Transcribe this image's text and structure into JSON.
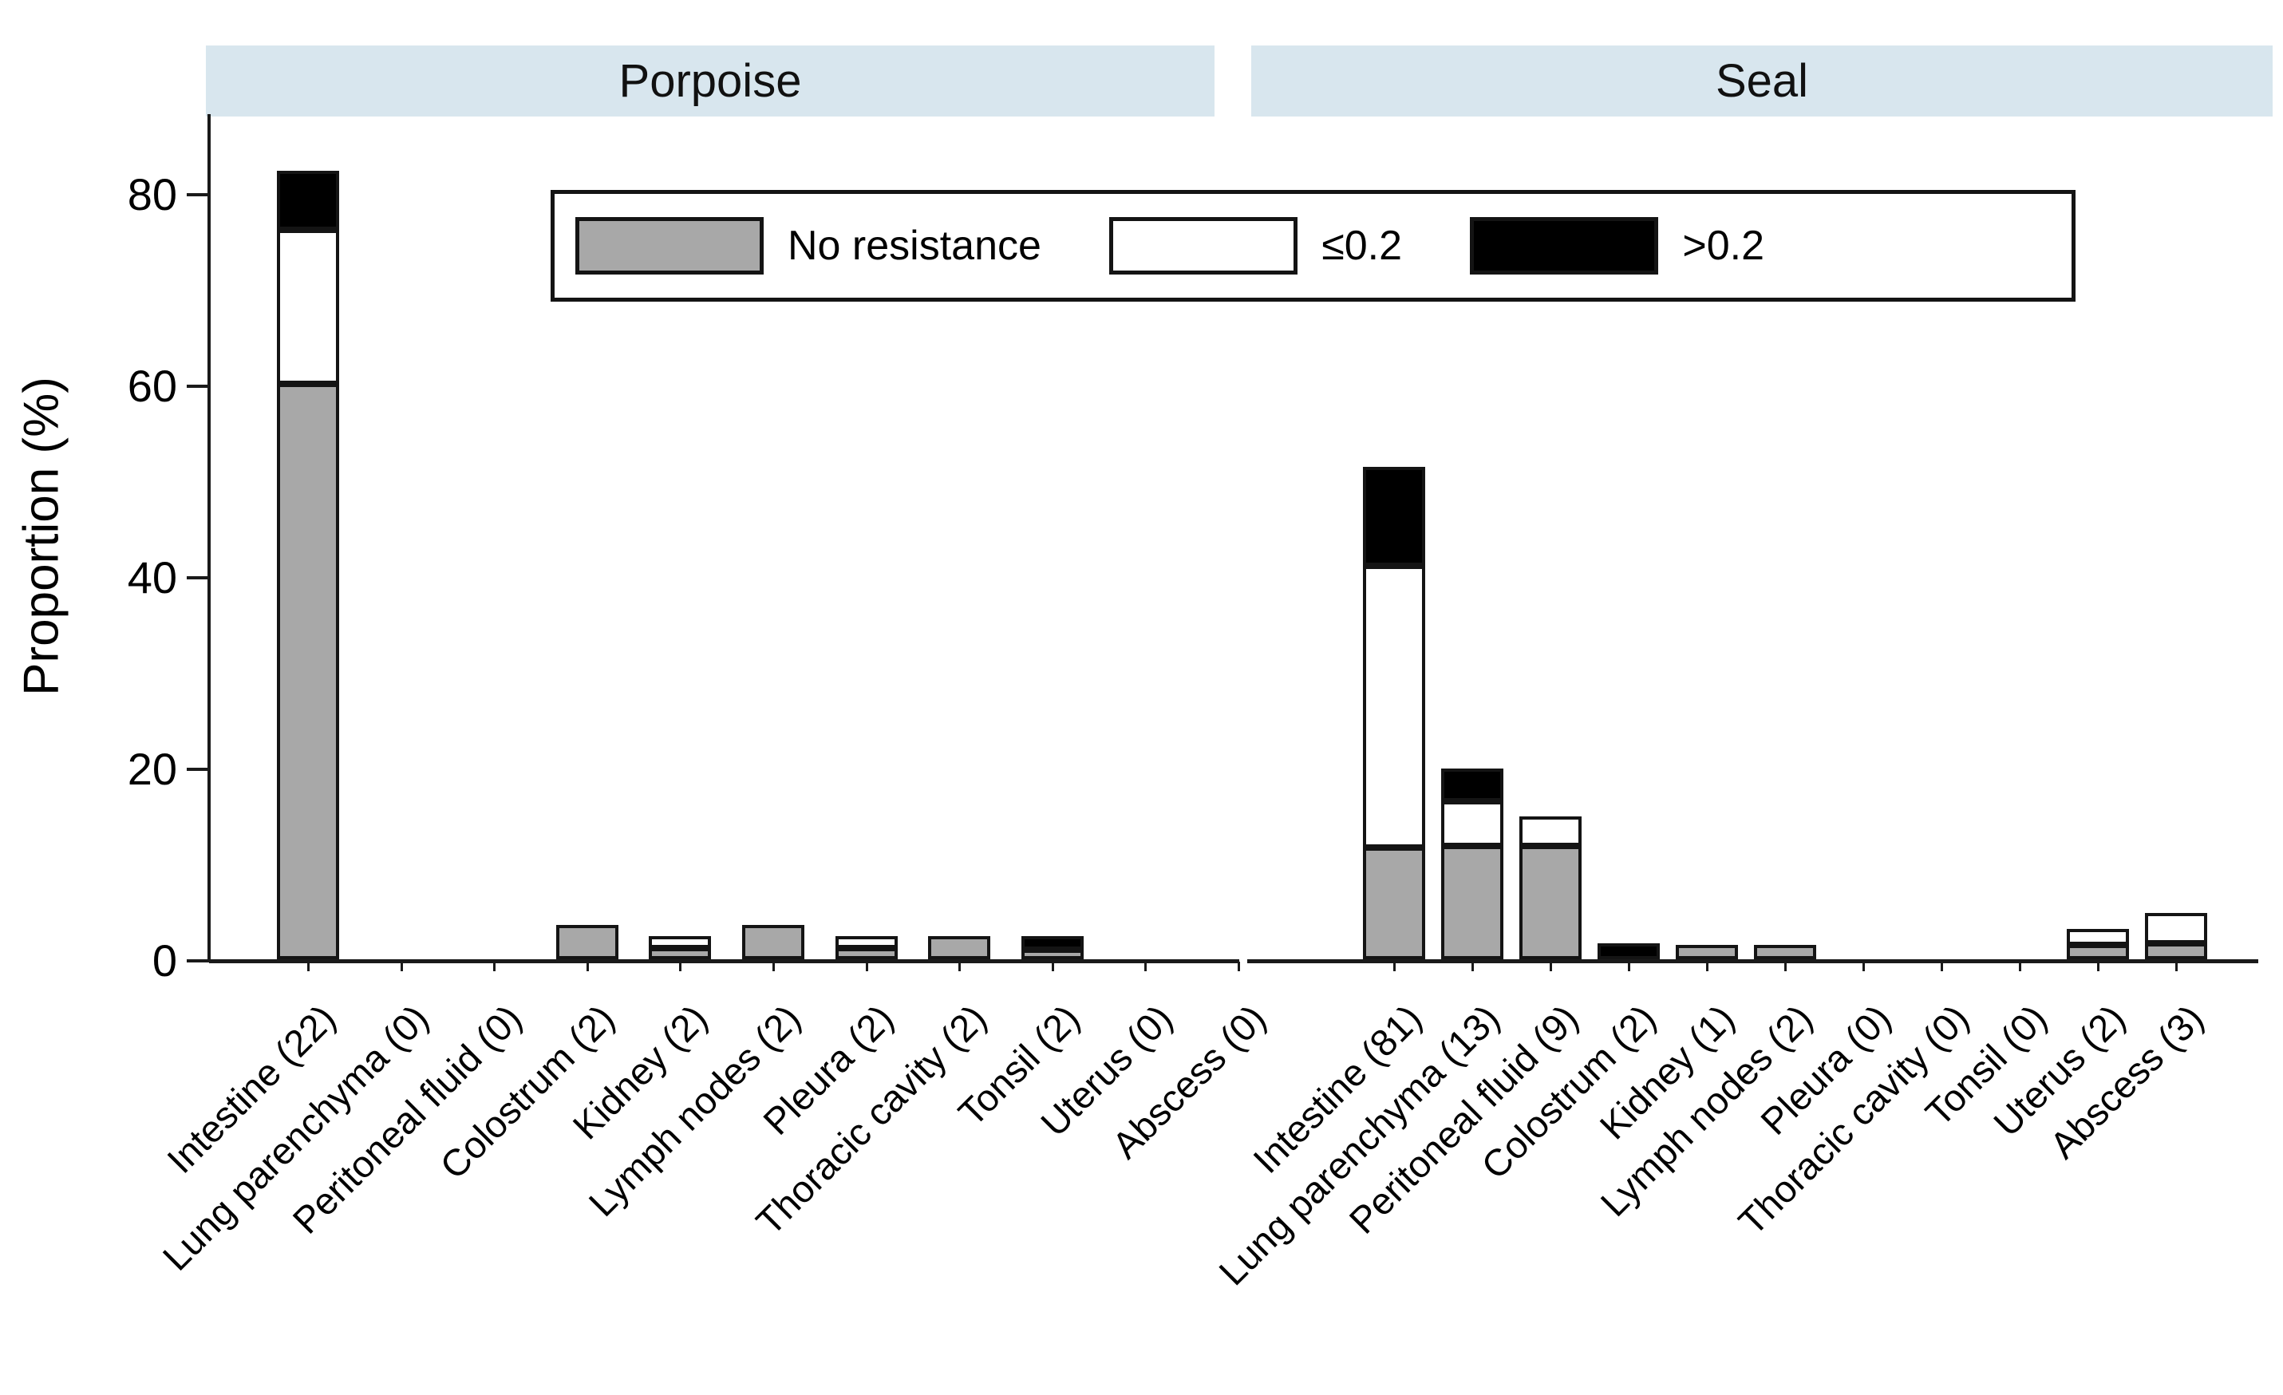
{
  "figure": {
    "ylabel": "Proportion (%)",
    "panel_titles": [
      "Porpoise",
      "Seal"
    ],
    "header_band_color": "#d8e6ee",
    "bar_fill_colors": {
      "no_resistance": "#a8a8a8",
      "le_0_2": "#ffffff",
      "gt_0_2": "#000000"
    },
    "outline_color": "#141414"
  },
  "legend": {
    "items": [
      {
        "label": "No resistance",
        "color": "#a8a8a8"
      },
      {
        "label": "≤0.2",
        "color": "#ffffff"
      },
      {
        "label": ">0.2",
        "color": "#000000"
      }
    ]
  },
  "chart_data": {
    "type": "bar",
    "stacked": true,
    "orientation": "vertical",
    "title": "",
    "xlabel": "",
    "ylabel": "Proportion (%)",
    "ylim": [
      0,
      88
    ],
    "yticks": [
      0,
      20,
      40,
      60,
      80
    ],
    "grid": false,
    "legend_position": "top-center-inside",
    "series_names": [
      "No resistance",
      "≤0.2",
      ">0.2"
    ],
    "panels": [
      {
        "title": "Porpoise",
        "categories": [
          "Intestine (22)",
          "Lung parenchyma (0)",
          "Peritoneal fluid (0)",
          "Colostrum (2)",
          "Kidney (2)",
          "Lymph nodes (2)",
          "Pleura (2)",
          "Thoracic cavity (2)",
          "Tonsil (2)",
          "Uterus (0)",
          "Abscess (0)"
        ],
        "sample_counts": [
          22,
          0,
          0,
          2,
          2,
          2,
          2,
          2,
          2,
          0,
          0
        ],
        "series": [
          {
            "name": "No resistance",
            "values": [
              60.1,
              0,
              0,
              3.6,
              1.2,
              3.6,
              1.2,
              2.4,
              1.0,
              0,
              0
            ]
          },
          {
            "name": "≤0.2",
            "values": [
              16.1,
              0,
              0,
              0,
              1.2,
              0,
              1.2,
              0,
              0,
              0,
              0
            ]
          },
          {
            "name": ">0.2",
            "values": [
              6.1,
              0,
              0,
              0,
              0,
              0,
              0,
              0,
              1.4,
              0,
              0
            ]
          }
        ]
      },
      {
        "title": "Seal",
        "categories": [
          "Intestine (81)",
          "Lung parenchyma (13)",
          "Peritoneal fluid (9)",
          "Colostrum (2)",
          "Kidney (1)",
          "Lymph nodes (2)",
          "Pleura (0)",
          "Thoracic cavity (0)",
          "Tonsil (0)",
          "Uterus (2)",
          "Abscess (3)"
        ],
        "sample_counts": [
          81,
          13,
          9,
          2,
          1,
          2,
          0,
          0,
          0,
          2,
          3
        ],
        "series": [
          {
            "name": "No resistance",
            "values": [
              11.7,
              11.8,
              11.8,
              0,
              1.5,
              1.5,
              0,
              0,
              0,
              1.5,
              1.7
            ]
          },
          {
            "name": "≤0.2",
            "values": [
              29.4,
              4.7,
              3.1,
              0,
              0,
              0,
              0,
              0,
              0,
              1.7,
              3.1
            ]
          },
          {
            "name": ">0.2",
            "values": [
              10.3,
              3.4,
              0,
              1.7,
              0,
              0,
              0,
              0,
              0,
              0,
              0
            ]
          }
        ]
      }
    ]
  }
}
